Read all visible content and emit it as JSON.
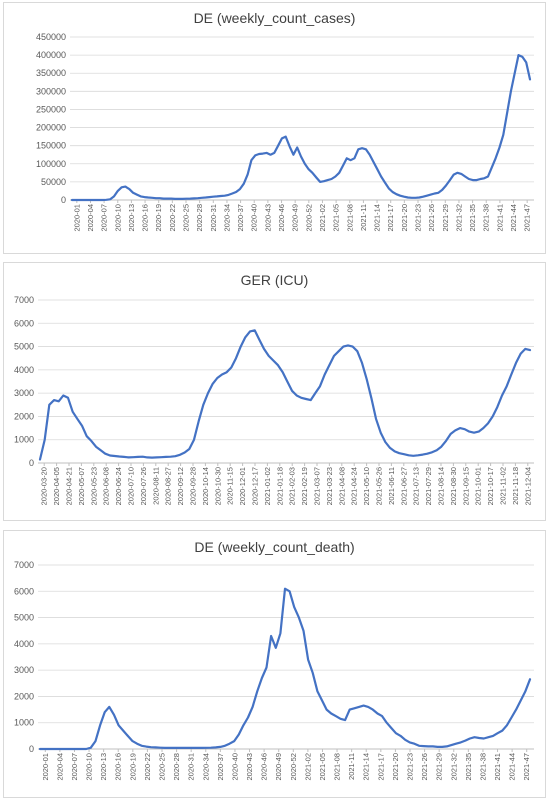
{
  "chart_data": [
    {
      "type": "line",
      "title": "DE (weekly_count_cases)",
      "xlabel": "",
      "ylabel": "",
      "ylim": [
        0,
        450000
      ],
      "yticks": [
        "0",
        "50000",
        "100000",
        "150000",
        "200000",
        "250000",
        "300000",
        "350000",
        "400000",
        "450000"
      ],
      "xticks": [
        "2020-01",
        "2020-04",
        "2020-07",
        "2020-10",
        "2020-13",
        "2020-16",
        "2020-19",
        "2020-22",
        "2020-25",
        "2020-28",
        "2020-31",
        "2020-34",
        "2020-37",
        "2020-40",
        "2020-43",
        "2020-46",
        "2020-49",
        "2020-52",
        "2021-02",
        "2021-05",
        "2021-08",
        "2021-11",
        "2021-14",
        "2021-17",
        "2021-20",
        "2021-23",
        "2021-26",
        "2021-29",
        "2021-32",
        "2021-35",
        "2021-38",
        "2021-41",
        "2021-44",
        "2021-47"
      ],
      "grid": true,
      "color": "#4472c4",
      "series": [
        {
          "values": [
            0,
            0,
            0,
            0,
            0,
            0,
            0,
            0,
            0,
            500,
            2000,
            10000,
            25000,
            35000,
            37000,
            30000,
            20000,
            15000,
            10000,
            8000,
            7000,
            6000,
            5000,
            5000,
            4000,
            4000,
            4000,
            3000,
            3000,
            3000,
            3500,
            4000,
            4500,
            5000,
            6000,
            7000,
            8000,
            9000,
            10000,
            11000,
            12000,
            14000,
            18000,
            22000,
            30000,
            45000,
            70000,
            110000,
            123000,
            127000,
            128000,
            130000,
            125000,
            130000,
            150000,
            170000,
            175000,
            148000,
            125000,
            145000,
            120000,
            100000,
            85000,
            75000,
            62000,
            50000,
            52000,
            55000,
            58000,
            65000,
            75000,
            95000,
            115000,
            110000,
            115000,
            140000,
            143000,
            140000,
            125000,
            105000,
            85000,
            65000,
            48000,
            32000,
            22000,
            16000,
            12000,
            9000,
            7000,
            6000,
            6000,
            7000,
            9000,
            12000,
            15000,
            18000,
            20000,
            28000,
            40000,
            55000,
            70000,
            75000,
            72000,
            65000,
            58000,
            55000,
            55000,
            58000,
            60000,
            65000,
            90000,
            115000,
            145000,
            180000,
            240000,
            300000,
            350000,
            400000,
            395000,
            380000,
            333000
          ]
        }
      ]
    },
    {
      "type": "line",
      "title": "GER (ICU)",
      "xlabel": "",
      "ylabel": "",
      "ylim": [
        0,
        7000
      ],
      "yticks": [
        "0",
        "1000",
        "2000",
        "3000",
        "4000",
        "5000",
        "6000",
        "7000"
      ],
      "xticks": [
        "2020-03-20",
        "2020-04-05",
        "2020-04-21",
        "2020-05-07",
        "2020-05-23",
        "2020-06-08",
        "2020-06-24",
        "2020-07-10",
        "2020-07-26",
        "2020-08-11",
        "2020-08-27",
        "2020-09-12",
        "2020-09-28",
        "2020-10-14",
        "2020-10-30",
        "2020-11-15",
        "2020-12-01",
        "2020-12-17",
        "2021-01-02",
        "2021-01-18",
        "2021-02-03",
        "2021-02-19",
        "2021-03-07",
        "2021-03-23",
        "2021-04-08",
        "2021-04-24",
        "2021-05-10",
        "2021-05-26",
        "2021-06-11",
        "2021-06-27",
        "2021-07-13",
        "2021-07-29",
        "2021-08-14",
        "2021-08-30",
        "2021-09-15",
        "2021-10-01",
        "2021-10-17",
        "2021-11-02",
        "2021-11-18",
        "2021-12-04"
      ],
      "grid": true,
      "color": "#4472c4",
      "series": [
        {
          "values": [
            150,
            1000,
            2500,
            2700,
            2650,
            2900,
            2800,
            2200,
            1900,
            1600,
            1150,
            950,
            700,
            550,
            400,
            320,
            300,
            280,
            260,
            240,
            250,
            260,
            270,
            240,
            230,
            240,
            250,
            260,
            270,
            290,
            350,
            450,
            600,
            1000,
            1800,
            2500,
            3000,
            3400,
            3650,
            3800,
            3900,
            4100,
            4500,
            5000,
            5400,
            5650,
            5700,
            5300,
            4900,
            4600,
            4400,
            4200,
            3900,
            3500,
            3100,
            2900,
            2800,
            2750,
            2700,
            3000,
            3300,
            3800,
            4200,
            4600,
            4800,
            5000,
            5050,
            5000,
            4800,
            4300,
            3600,
            2800,
            1900,
            1300,
            900,
            650,
            500,
            420,
            380,
            330,
            310,
            330,
            360,
            400,
            460,
            550,
            700,
            950,
            1250,
            1400,
            1500,
            1450,
            1350,
            1300,
            1350,
            1500,
            1700,
            2000,
            2400,
            2900,
            3300,
            3800,
            4300,
            4700,
            4900,
            4850
          ]
        }
      ]
    },
    {
      "type": "line",
      "title": "DE (weekly_count_death)",
      "xlabel": "",
      "ylabel": "",
      "ylim": [
        0,
        7000
      ],
      "yticks": [
        "0",
        "1000",
        "2000",
        "3000",
        "4000",
        "5000",
        "6000",
        "7000"
      ],
      "xticks": [
        "2020-01",
        "2020-04",
        "2020-07",
        "2020-10",
        "2020-13",
        "2020-16",
        "2020-19",
        "2020-22",
        "2020-25",
        "2020-28",
        "2020-31",
        "2020-34",
        "2020-37",
        "2020-40",
        "2020-43",
        "2020-46",
        "2020-49",
        "2020-52",
        "2021-02",
        "2021-05",
        "2021-08",
        "2021-11",
        "2021-14",
        "2021-17",
        "2021-20",
        "2021-23",
        "2021-26",
        "2021-29",
        "2021-32",
        "2021-35",
        "2021-38",
        "2021-41",
        "2021-44",
        "2021-47"
      ],
      "grid": true,
      "color": "#4472c4",
      "series": [
        {
          "values": [
            0,
            0,
            0,
            0,
            0,
            0,
            0,
            0,
            0,
            0,
            0,
            50,
            300,
            900,
            1400,
            1600,
            1300,
            900,
            700,
            500,
            300,
            200,
            120,
            90,
            70,
            60,
            50,
            40,
            40,
            40,
            40,
            40,
            40,
            40,
            40,
            40,
            45,
            50,
            60,
            80,
            120,
            200,
            300,
            550,
            900,
            1200,
            1600,
            2200,
            2700,
            3100,
            4300,
            3850,
            4400,
            6100,
            6000,
            5400,
            5000,
            4500,
            3400,
            2900,
            2200,
            1850,
            1500,
            1350,
            1250,
            1150,
            1100,
            1500,
            1550,
            1600,
            1650,
            1600,
            1500,
            1350,
            1250,
            1000,
            800,
            600,
            500,
            350,
            250,
            200,
            120,
            110,
            100,
            100,
            80,
            80,
            100,
            150,
            200,
            250,
            320,
            400,
            450,
            420,
            400,
            450,
            500,
            600,
            700,
            900,
            1200,
            1500,
            1850,
            2200,
            2650
          ]
        }
      ]
    }
  ]
}
